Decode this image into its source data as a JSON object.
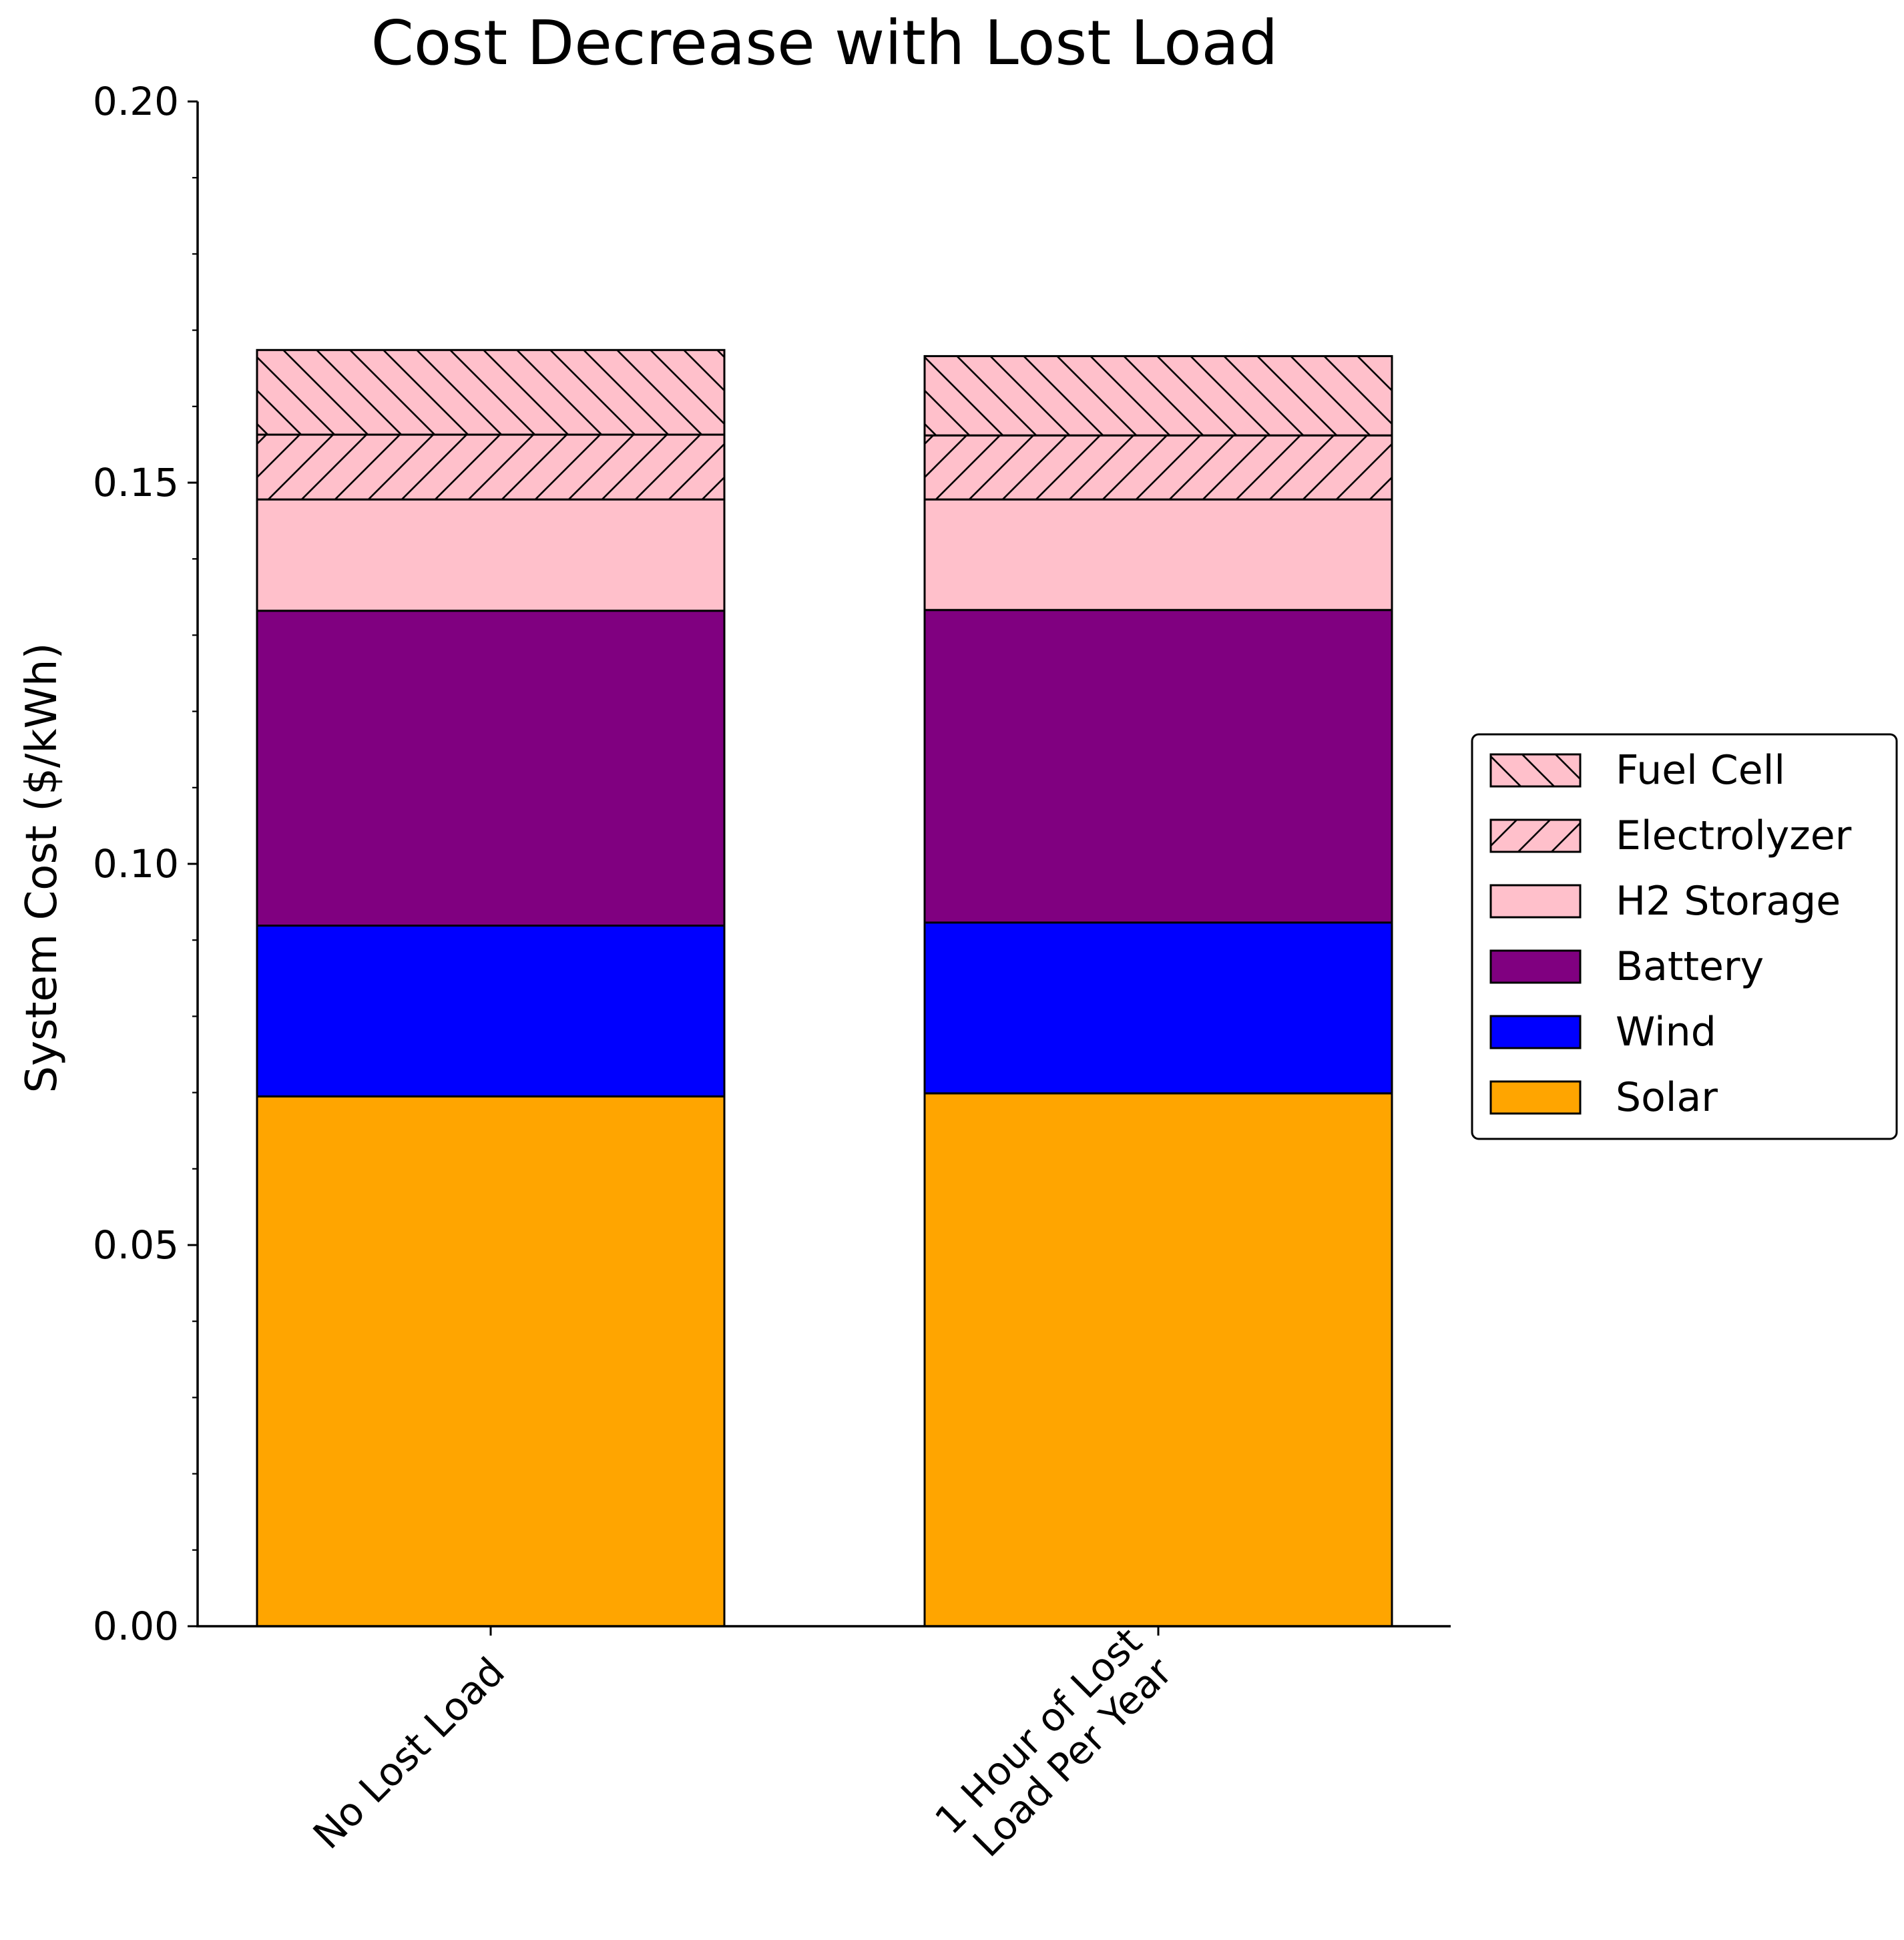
{
  "chart_data": {
    "type": "bar",
    "stacked": true,
    "title": "Cost Decrease with Lost Load",
    "xlabel": "",
    "ylabel": "System Cost ($/kWh)",
    "ylim": [
      0,
      0.2
    ],
    "yticks": [
      "0.00",
      "0.05",
      "0.10",
      "0.15",
      "0.20"
    ],
    "categories": [
      "No Lost Load",
      "1 Hour of Lost\nLoad Per Year"
    ],
    "grid": false,
    "legend_position": "right",
    "series": [
      {
        "name": "Solar",
        "color": "#FFA500",
        "hatch": "none",
        "values": [
          0.0695,
          0.0699
        ]
      },
      {
        "name": "Wind",
        "color": "#0000FF",
        "hatch": "none",
        "values": [
          0.0224,
          0.0224
        ]
      },
      {
        "name": "Battery",
        "color": "#800080",
        "hatch": "none",
        "values": [
          0.0413,
          0.041
        ]
      },
      {
        "name": "H2 Storage",
        "color": "#FFC0CB",
        "hatch": "none",
        "values": [
          0.0146,
          0.0145
        ]
      },
      {
        "name": "Electrolyzer",
        "color": "#FFC0CB",
        "hatch": "forward",
        "values": [
          0.0085,
          0.0084
        ]
      },
      {
        "name": "Fuel Cell",
        "color": "#FFC0CB",
        "hatch": "back",
        "values": [
          0.0111,
          0.0104
        ]
      }
    ]
  }
}
